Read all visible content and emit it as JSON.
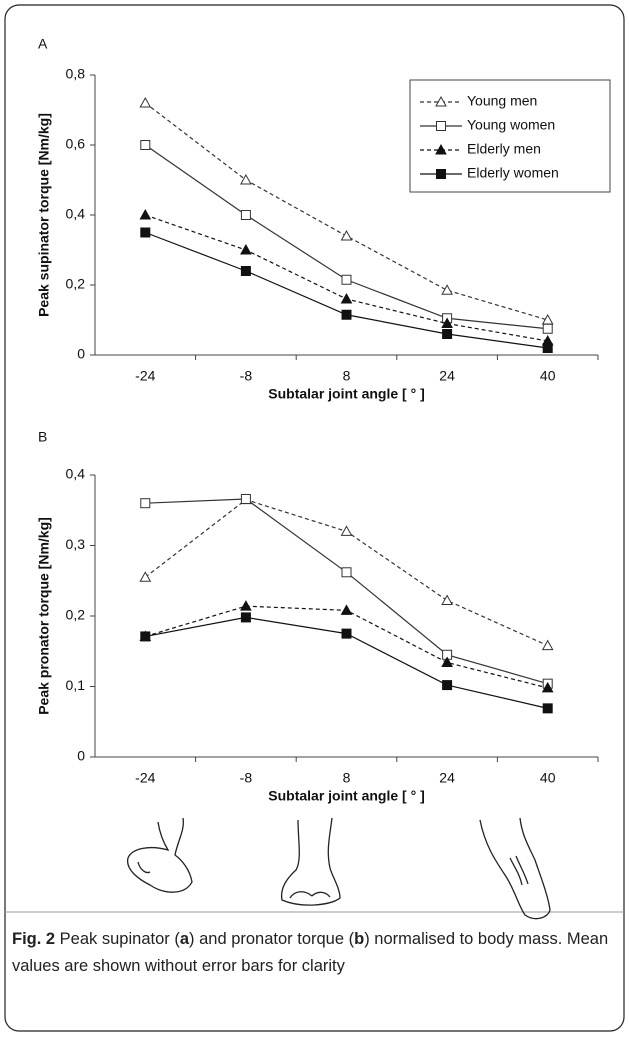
{
  "chart_data": [
    {
      "type": "line",
      "panel": "A",
      "ylabel": "Peak supinator torque [Nm/kg]",
      "xlabel": "Subtalar joint angle [ ° ]",
      "categories": [
        "-24",
        "-8",
        "8",
        "24",
        "40"
      ],
      "ylim": [
        0,
        0.8
      ],
      "yticks": [
        0,
        {
          "value": 0.2,
          "label": "0,2"
        },
        {
          "value": 0.4,
          "label": "0,4"
        },
        {
          "value": 0.6,
          "label": "0,6"
        },
        {
          "value": 0.8,
          "label": "0,8"
        }
      ],
      "legend": "upper right",
      "series": [
        {
          "name": "Young men",
          "color": "#333333",
          "line_style": "dashed",
          "marker": "triangle-open",
          "values": [
            0.72,
            0.5,
            0.34,
            0.185,
            0.1
          ]
        },
        {
          "name": "Young women",
          "color": "#333333",
          "line_style": "solid",
          "marker": "square-open",
          "values": [
            0.6,
            0.4,
            0.215,
            0.105,
            0.075
          ]
        },
        {
          "name": "Elderly men",
          "color": "#111111",
          "line_style": "dashed",
          "marker": "triangle-filled",
          "values": [
            0.4,
            0.3,
            0.16,
            0.09,
            0.04
          ]
        },
        {
          "name": "Elderly women",
          "color": "#111111",
          "line_style": "solid",
          "marker": "square-filled",
          "values": [
            0.35,
            0.24,
            0.115,
            0.06,
            0.02
          ]
        }
      ]
    },
    {
      "type": "line",
      "panel": "B",
      "ylabel": "Peak pronator torque [Nm/kg]",
      "xlabel": "Subtalar joint angle [ ° ]",
      "categories": [
        "-24",
        "-8",
        "8",
        "24",
        "40"
      ],
      "ylim": [
        0,
        0.4
      ],
      "yticks": [
        0,
        {
          "value": 0.1,
          "label": "0,1"
        },
        {
          "value": 0.2,
          "label": "0,2"
        },
        {
          "value": 0.3,
          "label": "0,3"
        },
        {
          "value": 0.4,
          "label": "0,4"
        }
      ],
      "series": [
        {
          "name": "Young men",
          "color": "#333333",
          "line_style": "dashed",
          "marker": "triangle-open",
          "values": [
            0.255,
            0.365,
            0.32,
            0.222,
            0.158
          ]
        },
        {
          "name": "Young women",
          "color": "#333333",
          "line_style": "solid",
          "marker": "square-open",
          "values": [
            0.36,
            0.366,
            0.262,
            0.145,
            0.104
          ]
        },
        {
          "name": "Elderly men",
          "color": "#111111",
          "line_style": "dashed",
          "marker": "triangle-filled",
          "values": [
            0.171,
            0.214,
            0.208,
            0.134,
            0.098
          ]
        },
        {
          "name": "Elderly women",
          "color": "#111111",
          "line_style": "solid",
          "marker": "square-filled",
          "values": [
            0.171,
            0.198,
            0.175,
            0.102,
            0.069
          ]
        }
      ]
    }
  ],
  "caption": {
    "label": "Fig. 2",
    "parts": [
      " Peak supinator (",
      "a",
      ") and pronator torque (",
      "b",
      ") normalised to body mass. Mean values are shown without error bars for clarity"
    ]
  }
}
